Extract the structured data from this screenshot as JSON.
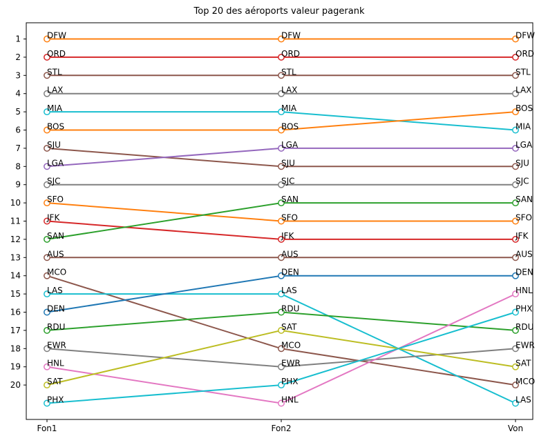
{
  "chart_data": {
    "type": "line",
    "title": "Top 20 des aéroports valeur pagerank",
    "categories": [
      "Fon1",
      "Fon2",
      "Von"
    ],
    "ylim": [
      0,
      22
    ],
    "y_inverted": true,
    "y_ticks": [
      1,
      2,
      3,
      4,
      5,
      6,
      7,
      8,
      9,
      10,
      11,
      12,
      13,
      14,
      15,
      16,
      17,
      18,
      19,
      20
    ],
    "grid": false,
    "marker": "open-circle",
    "series": [
      {
        "name": "DFW",
        "values": [
          1,
          1,
          1
        ],
        "color": "#ff7f0e"
      },
      {
        "name": "ORD",
        "values": [
          2,
          2,
          2
        ],
        "color": "#d62728"
      },
      {
        "name": "STL",
        "values": [
          3,
          3,
          3
        ],
        "color": "#8c564b"
      },
      {
        "name": "LAX",
        "values": [
          4,
          4,
          4
        ],
        "color": "#7f7f7f"
      },
      {
        "name": "MIA",
        "values": [
          5,
          5,
          6
        ],
        "color": "#17becf"
      },
      {
        "name": "BOS",
        "values": [
          6,
          6,
          5
        ],
        "color": "#ff7f0e"
      },
      {
        "name": "SJU",
        "values": [
          7,
          8,
          8
        ],
        "color": "#8c564b"
      },
      {
        "name": "LGA",
        "values": [
          8,
          7,
          7
        ],
        "color": "#9467bd"
      },
      {
        "name": "SJC",
        "values": [
          9,
          9,
          9
        ],
        "color": "#7f7f7f"
      },
      {
        "name": "SFO",
        "values": [
          10,
          11,
          11
        ],
        "color": "#ff7f0e"
      },
      {
        "name": "JFK",
        "values": [
          11,
          12,
          12
        ],
        "color": "#d62728"
      },
      {
        "name": "SAN",
        "values": [
          12,
          10,
          10
        ],
        "color": "#2ca02c"
      },
      {
        "name": "AUS",
        "values": [
          13,
          13,
          13
        ],
        "color": "#8c564b"
      },
      {
        "name": "MCO",
        "values": [
          14,
          18,
          20
        ],
        "color": "#8c564b"
      },
      {
        "name": "LAS",
        "values": [
          15,
          15,
          21
        ],
        "color": "#17becf"
      },
      {
        "name": "DEN",
        "values": [
          16,
          14,
          14
        ],
        "color": "#1f77b4"
      },
      {
        "name": "RDU",
        "values": [
          17,
          16,
          17
        ],
        "color": "#2ca02c"
      },
      {
        "name": "EWR",
        "values": [
          18,
          19,
          18
        ],
        "color": "#7f7f7f"
      },
      {
        "name": "HNL",
        "values": [
          19,
          21,
          15
        ],
        "color": "#e377c2"
      },
      {
        "name": "SAT",
        "values": [
          20,
          17,
          19
        ],
        "color": "#bcbd22"
      },
      {
        "name": "PHX",
        "values": [
          21,
          20,
          16
        ],
        "color": "#17becf"
      }
    ]
  }
}
